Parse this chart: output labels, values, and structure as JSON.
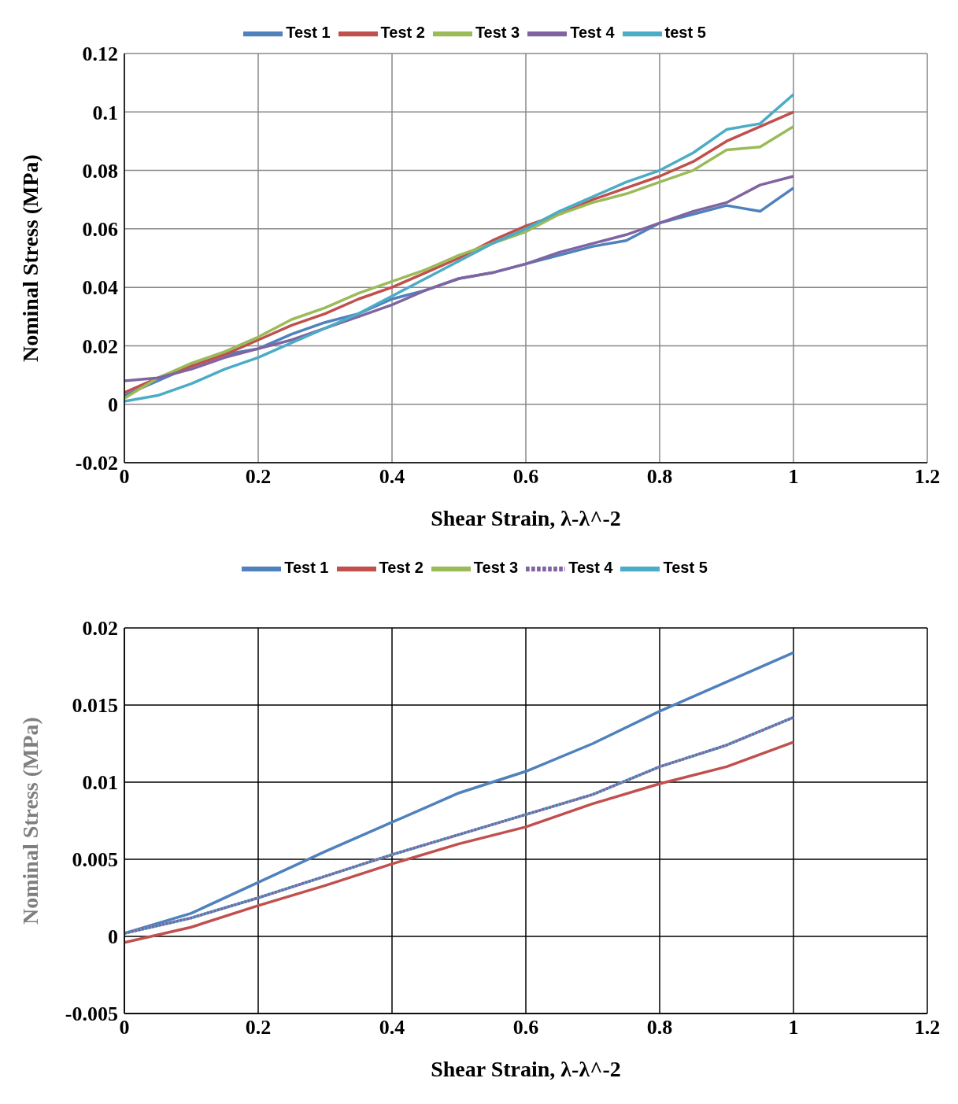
{
  "chart_data": [
    {
      "type": "line",
      "xlabel": "Shear Strain, λ-λ^-2",
      "ylabel": "Nominal Stress (MPa)",
      "x": [
        0,
        0.05,
        0.1,
        0.15,
        0.2,
        0.25,
        0.3,
        0.35,
        0.4,
        0.45,
        0.5,
        0.55,
        0.6,
        0.65,
        0.7,
        0.75,
        0.8,
        0.85,
        0.9,
        0.95,
        1
      ],
      "series": [
        {
          "name": "Test 1",
          "color": "#4f81bd",
          "values": [
            0.003,
            0.008,
            0.013,
            0.017,
            0.019,
            0.024,
            0.028,
            0.031,
            0.036,
            0.039,
            0.043,
            0.045,
            0.048,
            0.051,
            0.054,
            0.056,
            0.062,
            0.065,
            0.068,
            0.066,
            0.074
          ]
        },
        {
          "name": "Test 2",
          "color": "#c0504d",
          "values": [
            0.004,
            0.009,
            0.013,
            0.017,
            0.022,
            0.027,
            0.031,
            0.036,
            0.04,
            0.045,
            0.05,
            0.056,
            0.061,
            0.065,
            0.07,
            0.074,
            0.078,
            0.083,
            0.09,
            0.095,
            0.1
          ]
        },
        {
          "name": "Test 3",
          "color": "#9bbb59",
          "values": [
            0.002,
            0.009,
            0.014,
            0.018,
            0.023,
            0.029,
            0.033,
            0.038,
            0.042,
            0.046,
            0.051,
            0.055,
            0.059,
            0.065,
            0.069,
            0.072,
            0.076,
            0.08,
            0.087,
            0.088,
            0.095
          ]
        },
        {
          "name": "Test 4",
          "color": "#8064a2",
          "values": [
            0.008,
            0.009,
            0.012,
            0.016,
            0.019,
            0.022,
            0.026,
            0.03,
            0.034,
            0.039,
            0.043,
            0.045,
            0.048,
            0.052,
            0.055,
            0.058,
            0.062,
            0.066,
            0.069,
            0.075,
            0.078
          ]
        },
        {
          "name": "test 5",
          "color": "#4bacc6",
          "values": [
            0.001,
            0.003,
            0.007,
            0.012,
            0.016,
            0.021,
            0.026,
            0.031,
            0.037,
            0.043,
            0.049,
            0.055,
            0.06,
            0.066,
            0.071,
            0.076,
            0.08,
            0.086,
            0.094,
            0.096,
            0.106
          ]
        }
      ],
      "xlim": [
        0,
        1.2
      ],
      "xticks": [
        0,
        0.2,
        0.4,
        0.6,
        0.8,
        1,
        1.2
      ],
      "ylim": [
        -0.02,
        0.12
      ],
      "yticks": [
        -0.02,
        0,
        0.02,
        0.04,
        0.06,
        0.08,
        0.1,
        0.12
      ],
      "grid": true,
      "legend": "top",
      "marker": "none"
    },
    {
      "type": "line",
      "xlabel": "Shear Strain, λ-λ^-2",
      "ylabel": "Nominal Stress (MPa)",
      "x": [
        0,
        0.1,
        0.2,
        0.3,
        0.4,
        0.5,
        0.6,
        0.7,
        0.8,
        0.9,
        1
      ],
      "series": [
        {
          "name": "Test 1",
          "color": "#4f81bd",
          "values": [
            0.0002,
            0.0015,
            0.0035,
            0.0055,
            0.0074,
            0.0093,
            0.0107,
            0.0125,
            0.0146,
            0.0165,
            0.0184
          ]
        },
        {
          "name": "Test 2",
          "color": "#c0504d",
          "values": [
            -0.0004,
            0.0006,
            0.002,
            0.0033,
            0.0047,
            0.006,
            0.0071,
            0.0086,
            0.0099,
            0.011,
            0.0126
          ]
        },
        {
          "name": "Test 3",
          "color": "#9bbb59",
          "values": [
            null,
            null,
            null,
            null,
            null,
            null,
            null,
            null,
            null,
            null,
            null
          ]
        },
        {
          "name": "Test 4",
          "color": "#8064a2",
          "line_style": "dotted",
          "values": [
            0.0002,
            0.0012,
            0.0025,
            0.0039,
            0.0053,
            0.0066,
            0.0079,
            0.0092,
            0.011,
            0.0124,
            0.0142
          ]
        },
        {
          "name": "Test 5",
          "color": "#4bacc6",
          "values": [
            0.0002,
            0.0012,
            0.0025,
            0.0039,
            0.0053,
            0.0066,
            0.0079,
            0.0092,
            0.011,
            0.0124,
            0.0142
          ]
        }
      ],
      "xlim": [
        0,
        1.2
      ],
      "xticks": [
        0,
        0.2,
        0.4,
        0.6,
        0.8,
        1,
        1.2
      ],
      "ylim": [
        -0.005,
        0.02
      ],
      "yticks": [
        -0.005,
        0,
        0.005,
        0.01,
        0.015,
        0.02
      ],
      "grid": true,
      "legend": "top",
      "marker": "none"
    }
  ]
}
